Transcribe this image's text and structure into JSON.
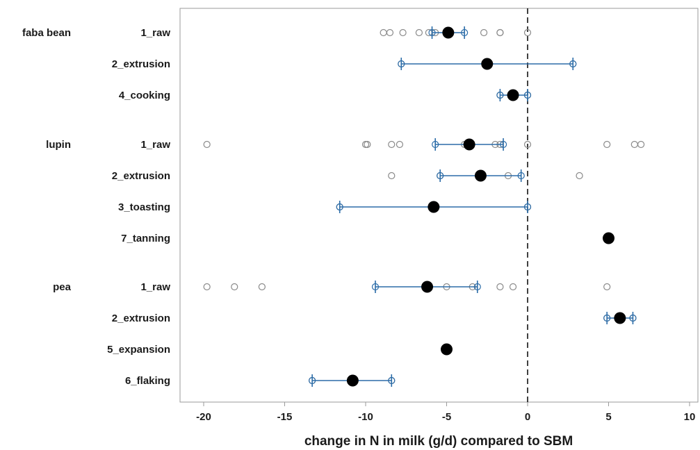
{
  "chart_data": {
    "type": "dot-interval",
    "xlabel": "change in N in milk (g/d) compared to SBM",
    "xlim": [
      -21,
      10.5
    ],
    "xticks": [
      -20,
      -15,
      -10,
      -5,
      0,
      5,
      10
    ],
    "xtick_labels": [
      "-20",
      "-15",
      "-10",
      "-5",
      "0",
      "5",
      "10"
    ],
    "reference_line": 0,
    "colors": {
      "interval": "#2b6ca8",
      "mean": "#000000",
      "observation": "#8a8a8a",
      "reference": "#000000",
      "axes": "#9a9a9a"
    },
    "groups": [
      {
        "name": "faba bean",
        "rows": [
          {
            "label": "1_raw",
            "mean": -4.9,
            "ci": [
              -5.9,
              -3.9
            ],
            "observations": [
              -8.9,
              -8.5,
              -7.7,
              -6.7,
              -6.1,
              -5.7,
              -2.7,
              -1.7,
              -1.7,
              0
            ]
          },
          {
            "label": "2_extrusion",
            "mean": -2.5,
            "ci": [
              -7.8,
              2.8
            ],
            "observations": [
              -7.8,
              2.8
            ]
          },
          {
            "label": "4_cooking",
            "mean": -0.9,
            "ci": [
              -1.7,
              0
            ],
            "observations": [
              -1.7,
              0
            ]
          }
        ]
      },
      {
        "name": "lupin",
        "rows": [
          {
            "label": "1_raw",
            "mean": -3.6,
            "ci": [
              -5.7,
              -1.5
            ],
            "observations": [
              -19.8,
              -10,
              -9.9,
              -8.4,
              -7.9,
              -3.9,
              -2,
              -1.7,
              0,
              4.9,
              6.6,
              7
            ]
          },
          {
            "label": "2_extrusion",
            "mean": -2.9,
            "ci": [
              -5.4,
              -0.4
            ],
            "observations": [
              -8.4,
              -5.4,
              -1.2,
              3.2
            ]
          },
          {
            "label": "3_toasting",
            "mean": -5.8,
            "ci": [
              -11.6,
              0
            ],
            "observations": [
              -11.6,
              0
            ]
          },
          {
            "label": "7_tanning",
            "mean": 5,
            "ci": null,
            "observations": []
          }
        ]
      },
      {
        "name": "pea",
        "rows": [
          {
            "label": "1_raw",
            "mean": -6.2,
            "ci": [
              -9.4,
              -3.1
            ],
            "observations": [
              -19.8,
              -18.1,
              -16.4,
              -5,
              -3.4,
              -1.7,
              -0.9,
              4.9
            ]
          },
          {
            "label": "2_extrusion",
            "mean": 5.7,
            "ci": [
              4.9,
              6.5
            ],
            "observations": [
              4.9,
              6.5
            ]
          },
          {
            "label": "5_expansion",
            "mean": -5,
            "ci": null,
            "observations": []
          },
          {
            "label": "6_flaking",
            "mean": -10.8,
            "ci": [
              -13.3,
              -8.4
            ],
            "observations": [
              -13.3,
              -8.4
            ]
          }
        ]
      }
    ]
  }
}
